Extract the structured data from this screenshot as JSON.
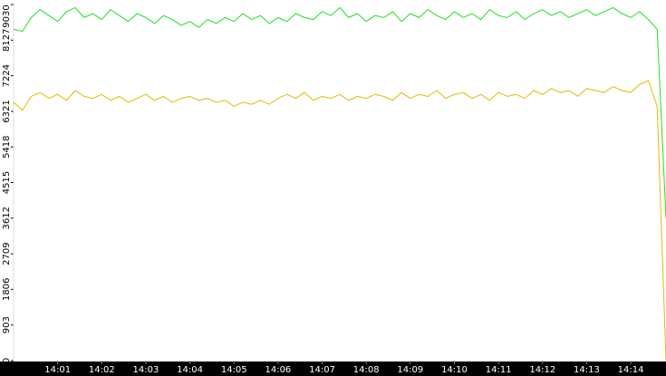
{
  "chart_data": {
    "type": "line",
    "x": [
      0,
      0.2,
      0.4,
      0.6,
      0.8,
      1,
      1.2,
      1.4,
      1.6,
      1.8,
      2,
      2.2,
      2.4,
      2.6,
      2.8,
      3,
      3.2,
      3.4,
      3.6,
      3.8,
      4,
      4.2,
      4.4,
      4.6,
      4.8,
      5,
      5.2,
      5.4,
      5.6,
      5.8,
      6,
      6.2,
      6.4,
      6.6,
      6.8,
      7,
      7.2,
      7.4,
      7.6,
      7.8,
      8,
      8.2,
      8.4,
      8.6,
      8.8,
      9,
      9.2,
      9.4,
      9.6,
      9.8,
      10,
      10.2,
      10.4,
      10.6,
      10.8,
      11,
      11.2,
      11.4,
      11.6,
      11.8,
      12,
      12.2,
      12.4,
      12.6,
      12.8,
      13,
      13.2,
      13.4,
      13.6,
      13.8,
      14,
      14.2,
      14.4,
      14.6,
      14.8
    ],
    "series": [
      {
        "color": "#1ee01e",
        "values": [
          8400,
          8350,
          8700,
          8900,
          8750,
          8600,
          8850,
          8950,
          8700,
          8800,
          8650,
          8900,
          8750,
          8600,
          8800,
          8700,
          8550,
          8750,
          8650,
          8500,
          8600,
          8450,
          8650,
          8550,
          8700,
          8600,
          8800,
          8650,
          8750,
          8550,
          8700,
          8600,
          8800,
          8700,
          8650,
          8850,
          8750,
          8950,
          8700,
          8800,
          8600,
          8750,
          8700,
          8850,
          8600,
          8800,
          8700,
          8900,
          8750,
          8650,
          8850,
          8700,
          8800,
          8650,
          8900,
          8750,
          8700,
          8850,
          8650,
          8800,
          8900,
          8750,
          8850,
          8700,
          8800,
          8900,
          8750,
          8850,
          8950,
          8800,
          8700,
          8850,
          8650,
          8400,
          3612
        ]
      },
      {
        "color": "#e6b800",
        "values": [
          6550,
          6350,
          6700,
          6800,
          6650,
          6750,
          6600,
          6850,
          6700,
          6650,
          6750,
          6600,
          6700,
          6550,
          6650,
          6750,
          6600,
          6700,
          6550,
          6650,
          6700,
          6600,
          6650,
          6550,
          6600,
          6450,
          6550,
          6500,
          6600,
          6500,
          6650,
          6750,
          6650,
          6800,
          6600,
          6700,
          6650,
          6750,
          6600,
          6700,
          6650,
          6750,
          6700,
          6600,
          6800,
          6650,
          6750,
          6700,
          6850,
          6650,
          6750,
          6800,
          6650,
          6750,
          6600,
          6800,
          6700,
          6750,
          6650,
          6850,
          6750,
          6900,
          6800,
          6850,
          6700,
          6900,
          6850,
          6800,
          6950,
          6850,
          6800,
          7000,
          7100,
          6450,
          0
        ]
      }
    ],
    "xlim": [
      0,
      14.8
    ],
    "xticks": [
      {
        "value": 1,
        "label": "14:01"
      },
      {
        "value": 2,
        "label": "14:02"
      },
      {
        "value": 3,
        "label": "14:03"
      },
      {
        "value": 4,
        "label": "14:04"
      },
      {
        "value": 5,
        "label": "14:05"
      },
      {
        "value": 6,
        "label": "14:06"
      },
      {
        "value": 7,
        "label": "14:07"
      },
      {
        "value": 8,
        "label": "14:08"
      },
      {
        "value": 9,
        "label": "14:09"
      },
      {
        "value": 10,
        "label": "14:10"
      },
      {
        "value": 11,
        "label": "14:11"
      },
      {
        "value": 12,
        "label": "14:12"
      },
      {
        "value": 13,
        "label": "14:13"
      },
      {
        "value": 14,
        "label": "14:14"
      }
    ],
    "ylim": [
      0,
      9030
    ],
    "yticks": [
      0,
      903,
      1806,
      2709,
      3612,
      4515,
      5418,
      6321,
      7224,
      8127,
      9030
    ]
  }
}
